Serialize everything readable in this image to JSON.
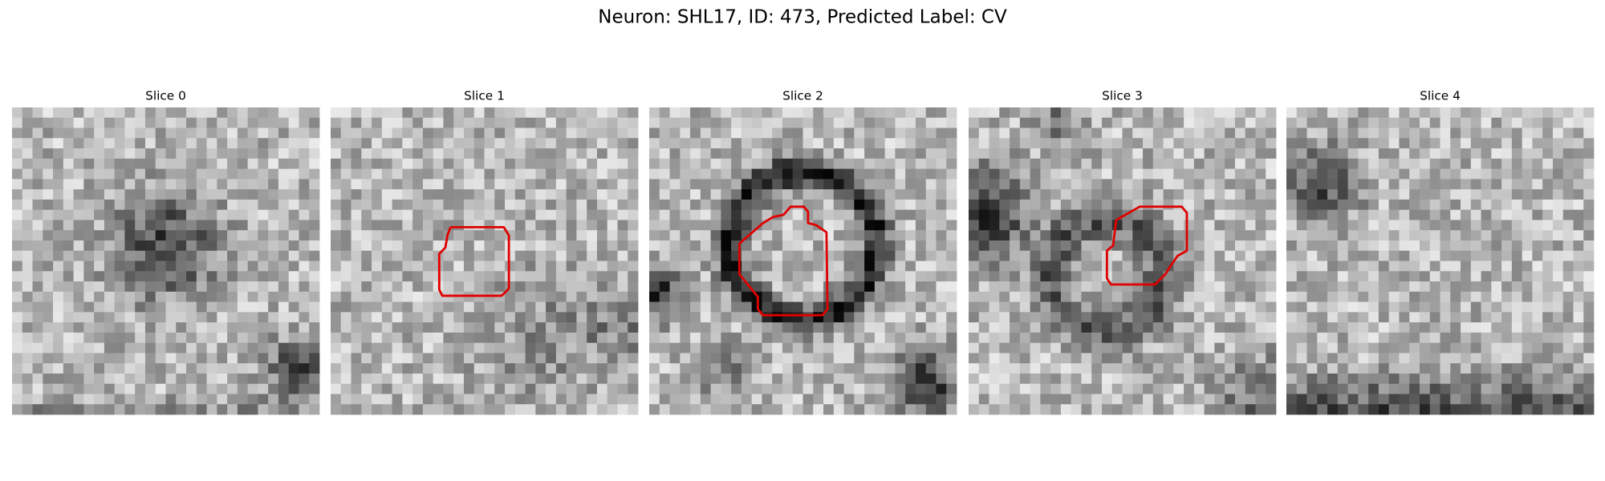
{
  "header": {
    "title": "Neuron: SHL17, ID: 473, Predicted Label: CV"
  },
  "panels": [
    {
      "title": "Slice 0"
    },
    {
      "title": "Slice 1"
    },
    {
      "title": "Slice 2"
    },
    {
      "title": "Slice 3"
    },
    {
      "title": "Slice 4"
    }
  ]
}
